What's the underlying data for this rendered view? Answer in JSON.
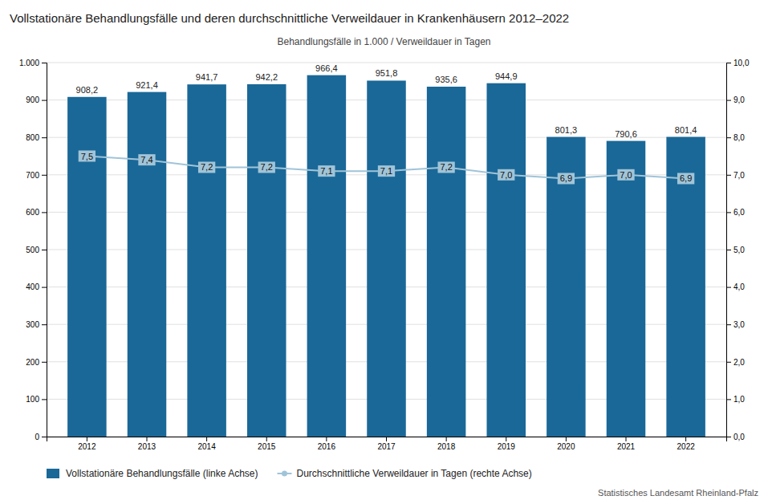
{
  "chart_data": {
    "type": "bar",
    "title": "Vollstationäre Behandlungsfälle und deren durchschnittliche Verweildauer in Krankenhäusern 2012–2022",
    "subtitle": "Behandlungsfälle  in 1.000 / Verweildauer in Tagen",
    "source": "Statistisches Landesamt Rheinland-Pfalz",
    "categories": [
      "2012",
      "2013",
      "2014",
      "2015",
      "2016",
      "2017",
      "2018",
      "2019",
      "2020",
      "2021",
      "2022"
    ],
    "series": [
      {
        "name": "Vollstationäre Behandlungsfälle (linke Achse)",
        "type": "bar",
        "color": "#1a6898",
        "values": [
          908.2,
          921.4,
          941.7,
          942.2,
          966.4,
          951.8,
          935.6,
          944.9,
          801.3,
          790.6,
          801.4
        ],
        "value_labels": [
          "908,2",
          "921,4",
          "941,7",
          "942,2",
          "966,4",
          "951,8",
          "935,6",
          "944,9",
          "801,3",
          "790,6",
          "801,4"
        ]
      },
      {
        "name": "Durchschnittliche Verweildauer in Tagen (rechte Achse)",
        "type": "line",
        "axis": "y2",
        "color": "#a0c4d8",
        "marker": "circle",
        "values": [
          7.5,
          7.4,
          7.2,
          7.2,
          7.1,
          7.1,
          7.2,
          7.0,
          6.9,
          7.0,
          6.9
        ],
        "value_labels": [
          "7,5",
          "7,4",
          "7,2",
          "7,2",
          "7,1",
          "7,1",
          "7,2",
          "7,0",
          "6,9",
          "7,0",
          "6,9"
        ]
      }
    ],
    "ylim": [
      0,
      1000
    ],
    "yticks": [
      0,
      100,
      200,
      300,
      400,
      500,
      600,
      700,
      800,
      900,
      {
        "value": 1000,
        "label": "1.000"
      }
    ],
    "y2lim": [
      0.0,
      10.0
    ],
    "y2ticks": [
      {
        "value": 0.0,
        "label": "0,0"
      },
      {
        "value": 1.0,
        "label": "1,0"
      },
      {
        "value": 2.0,
        "label": "2,0"
      },
      {
        "value": 3.0,
        "label": "3,0"
      },
      {
        "value": 4.0,
        "label": "4,0"
      },
      {
        "value": 5.0,
        "label": "5,0"
      },
      {
        "value": 6.0,
        "label": "6,0"
      },
      {
        "value": 7.0,
        "label": "7,0"
      },
      {
        "value": 8.0,
        "label": "8,0"
      },
      {
        "value": 9.0,
        "label": "9,0"
      },
      {
        "value": 10.0,
        "label": "10,0"
      }
    ],
    "grid": true,
    "legend": "bottom",
    "data_labels": true
  }
}
